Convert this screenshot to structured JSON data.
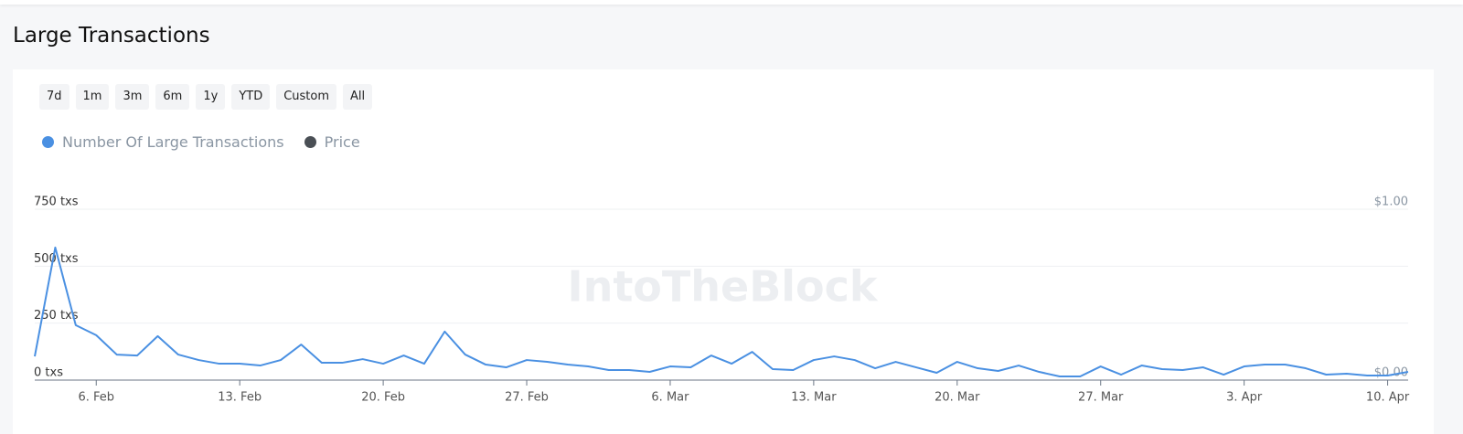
{
  "header": {
    "title": "Large Transactions"
  },
  "range_buttons": [
    "7d",
    "1m",
    "3m",
    "6m",
    "1y",
    "YTD",
    "Custom",
    "All"
  ],
  "watermark": "IntoTheBlock",
  "chart_data": {
    "type": "line",
    "categories": [
      null,
      null,
      null,
      "6. Feb",
      null,
      null,
      null,
      null,
      null,
      null,
      "13. Feb",
      null,
      null,
      null,
      null,
      null,
      null,
      "20. Feb",
      null,
      null,
      null,
      null,
      null,
      null,
      "27. Feb",
      null,
      null,
      null,
      null,
      null,
      null,
      "6. Mar",
      null,
      null,
      null,
      null,
      null,
      null,
      "13. Mar",
      null,
      null,
      null,
      null,
      null,
      null,
      "20. Mar",
      null,
      null,
      null,
      null,
      null,
      null,
      "27. Mar",
      null,
      null,
      null,
      null,
      null,
      null,
      "3. Apr",
      null,
      null,
      null,
      null,
      null,
      null,
      "10. Apr",
      null
    ],
    "series": [
      {
        "name": "Number Of Large Transactions",
        "color": "#4a90e2",
        "values": [
          104,
          582,
          241,
          197,
          112,
          108,
          193,
          112,
          88,
          72,
          72,
          64,
          88,
          156,
          76,
          76,
          92,
          72,
          108,
          72,
          213,
          112,
          68,
          56,
          88,
          80,
          68,
          60,
          44,
          44,
          36,
          60,
          56,
          108,
          72,
          124,
          48,
          44,
          88,
          104,
          88,
          52,
          80,
          56,
          32,
          80,
          52,
          40,
          64,
          36,
          16,
          16,
          60,
          24,
          64,
          48,
          44,
          56,
          24,
          60,
          68,
          68,
          52,
          24,
          28,
          20,
          20,
          36
        ]
      }
    ],
    "hidden_series": [
      {
        "name": "Price",
        "color": "#4a4f55",
        "axis": "y2"
      }
    ],
    "ylim": [
      0,
      750
    ],
    "yticks": [
      {
        "value": 0,
        "label": "0 txs"
      },
      {
        "value": 250,
        "label": "250 txs"
      },
      {
        "value": 500,
        "label": "500 txs"
      },
      {
        "value": 750,
        "label": "750 txs"
      }
    ],
    "y2lim": [
      0,
      1
    ],
    "y2ticks": [
      {
        "value": 0,
        "label": "$0.00"
      },
      {
        "value": 1,
        "label": "$1.00"
      }
    ],
    "grid": true
  }
}
